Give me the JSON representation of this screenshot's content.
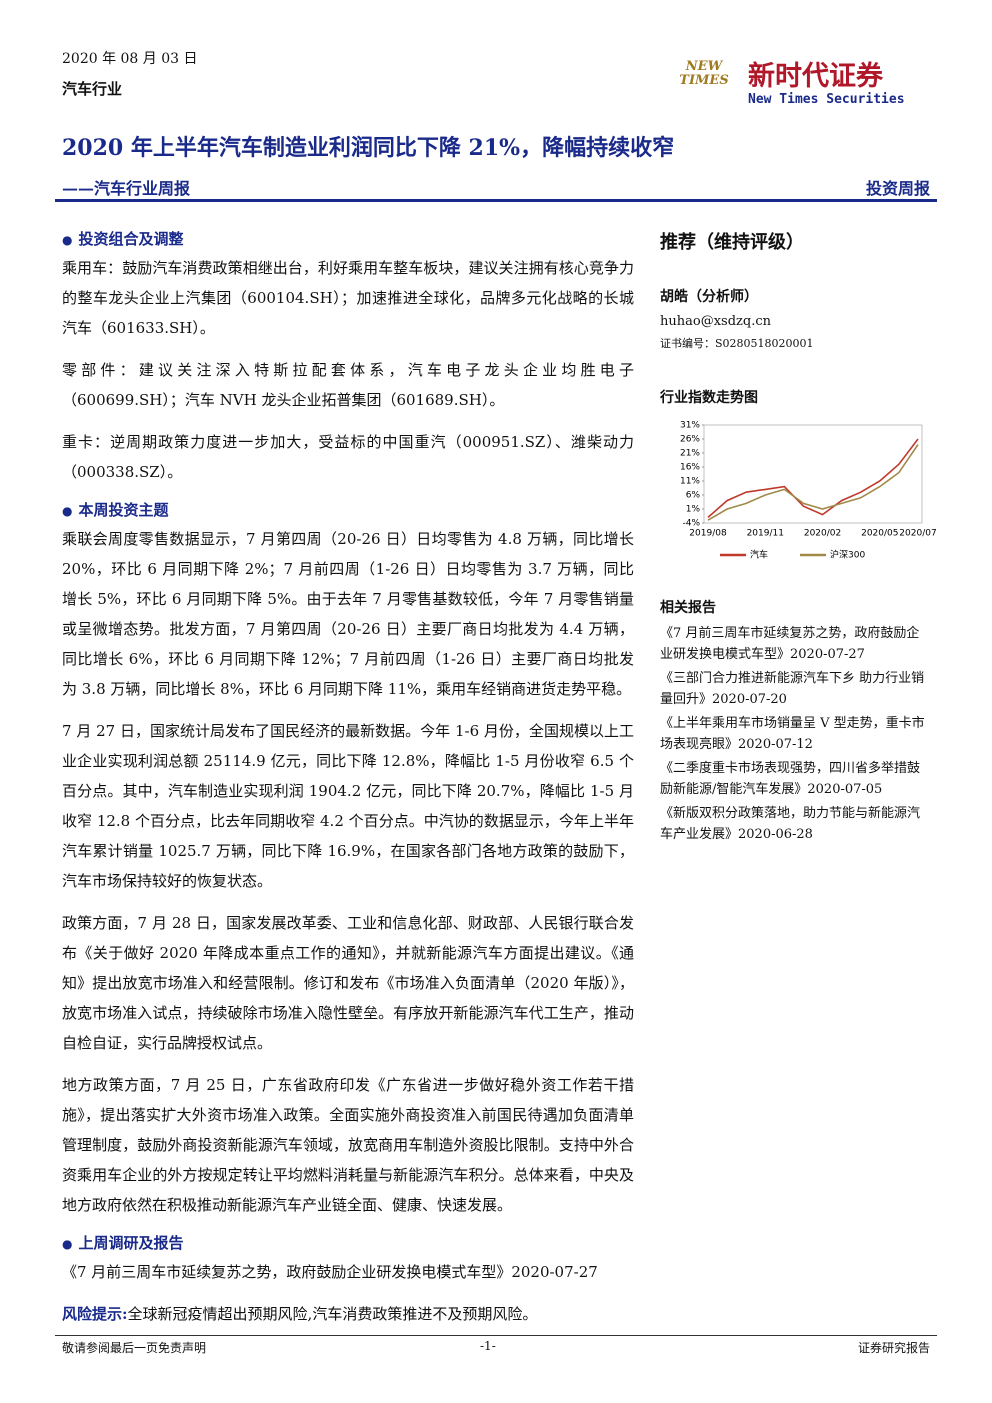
{
  "header": {
    "date": "2020 年 08 月 03 日",
    "industry": "汽车行业",
    "logo_cn": "新时代证券",
    "logo_en": "New Times Securities",
    "logo_mark": "NEW TIMES",
    "title": "2020 年上半年汽车制造业利润同比下降 21%，降幅持续收窄",
    "subtitle": "——汽车行业周报",
    "report_type": "投资周报"
  },
  "sections": [
    {
      "heading": "投资组合及调整",
      "paragraphs": [
        "乘用车：鼓励汽车消费政策相继出台，利好乘用车整车板块，建议关注拥有核心竞争力的整车龙头企业上汽集团（600104.SH）；加速推进全球化，品牌多元化战略的长城汽车（601633.SH）。",
        "零部件：建议关注深入特斯拉配套体系，汽车电子龙头企业均胜电子（600699.SH）；汽车 NVH 龙头企业拓普集团（601689.SH）。",
        "重卡：逆周期政策力度进一步加大，受益标的中国重汽（000951.SZ）、潍柴动力（000338.SZ）。"
      ]
    },
    {
      "heading": "本周投资主题",
      "paragraphs": [
        "乘联会周度零售数据显示，7 月第四周（20-26 日）日均零售为 4.8 万辆，同比增长 20%，环比 6 月同期下降 2%；7 月前四周（1-26 日）日均零售为 3.7 万辆，同比增长 5%，环比 6 月同期下降 5%。由于去年 7 月零售基数较低，今年 7 月零售销量或呈微增态势。批发方面，7 月第四周（20-26 日）主要厂商日均批发为 4.4 万辆，同比增长 6%，环比 6 月同期下降 12%；7 月前四周（1-26 日）主要厂商日均批发为 3.8 万辆，同比增长 8%，环比 6 月同期下降 11%，乘用车经销商进货走势平稳。",
        "7 月 27 日，国家统计局发布了国民经济的最新数据。今年 1-6 月份，全国规模以上工业企业实现利润总额 25114.9 亿元，同比下降 12.8%，降幅比 1-5 月份收窄 6.5 个百分点。其中，汽车制造业实现利润 1904.2 亿元，同比下降 20.7%，降幅比 1-5 月收窄 12.8 个百分点，比去年同期收窄 4.2 个百分点。中汽协的数据显示，今年上半年汽车累计销量 1025.7 万辆，同比下降 16.9%，在国家各部门各地方政策的鼓励下，汽车市场保持较好的恢复状态。",
        "政策方面，7 月 28 日，国家发展改革委、工业和信息化部、财政部、人民银行联合发布《关于做好 2020 年降成本重点工作的通知》，并就新能源汽车方面提出建议。《通知》提出放宽市场准入和经营限制。修订和发布《市场准入负面清单（2020 年版）》，放宽市场准入试点，持续破除市场准入隐性壁垒。有序放开新能源汽车代工生产，推动自检自证，实行品牌授权试点。",
        "地方政策方面，7 月 25 日，广东省政府印发《广东省进一步做好稳外资工作若干措施》，提出落实扩大外资市场准入政策。全面实施外商投资准入前国民待遇加负面清单管理制度，鼓励外商投资新能源汽车领域，放宽商用车制造外资股比限制。支持中外合资乘用车企业的外方按规定转让平均燃料消耗量与新能源汽车积分。总体来看，中央及地方政府依然在积极推动新能源汽车产业链全面、健康、快速发展。"
      ]
    },
    {
      "heading": "上周调研及报告",
      "paragraphs": [
        "《7 月前三周车市延续复苏之势，政府鼓励企业研发换电模式车型》2020-07-27"
      ]
    }
  ],
  "risk": {
    "label": "风险提示:",
    "text": "全球新冠疫情超出预期风险,汽车消费政策推进不及预期风险。"
  },
  "sidebar": {
    "rating": "推荐（维持评级）",
    "analyst": "胡皓（分析师）",
    "email": "huhao@xsdzq.cn",
    "cert": "证书编号：S0280518020001"
  },
  "chart_data": {
    "type": "line",
    "title": "行业指数走势图",
    "x": [
      "2019/08",
      null,
      null,
      "2019/11",
      null,
      null,
      "2020/02",
      null,
      null,
      "2020/05",
      null,
      "2020/07"
    ],
    "series": [
      {
        "name": "汽车",
        "color": "#c0392b",
        "values": [
          -2,
          4,
          7,
          8,
          9,
          2,
          -1,
          4,
          7,
          11,
          17,
          26
        ]
      },
      {
        "name": "沪深300",
        "color": "#a08a4a",
        "values": [
          -3,
          1,
          3,
          6,
          8,
          3,
          1,
          3,
          5,
          9,
          14,
          24
        ]
      }
    ],
    "ylim": [
      -4,
      31
    ],
    "yticks": [
      {
        "value": 31,
        "label": "31%"
      },
      {
        "value": 26,
        "label": "26%"
      },
      {
        "value": 21,
        "label": "21%"
      },
      {
        "value": 16,
        "label": "16%"
      },
      {
        "value": 11,
        "label": "11%"
      },
      {
        "value": 6,
        "label": "6%"
      },
      {
        "value": 1,
        "label": "1%"
      },
      {
        "value": -4,
        "label": "-4%"
      }
    ]
  },
  "related": {
    "heading": "相关报告",
    "reports": [
      "《7 月前三周车市延续复苏之势，政府鼓励企业研发换电模式车型》2020-07-27",
      "《三部门合力推进新能源汽车下乡 助力行业销量回升》2020-07-20",
      "《上半年乘用车市场销量呈 V 型走势，重卡市场表现亮眼》2020-07-12",
      "《二季度重卡市场表现强势，四川省多举措鼓励新能源/智能汽车发展》2020-07-05",
      "《新版双积分政策落地，助力节能与新能源汽车产业发展》2020-06-28"
    ]
  },
  "footer": {
    "left": "敬请参阅最后一页免责声明",
    "center": "-1-",
    "right": "证券研究报告"
  }
}
